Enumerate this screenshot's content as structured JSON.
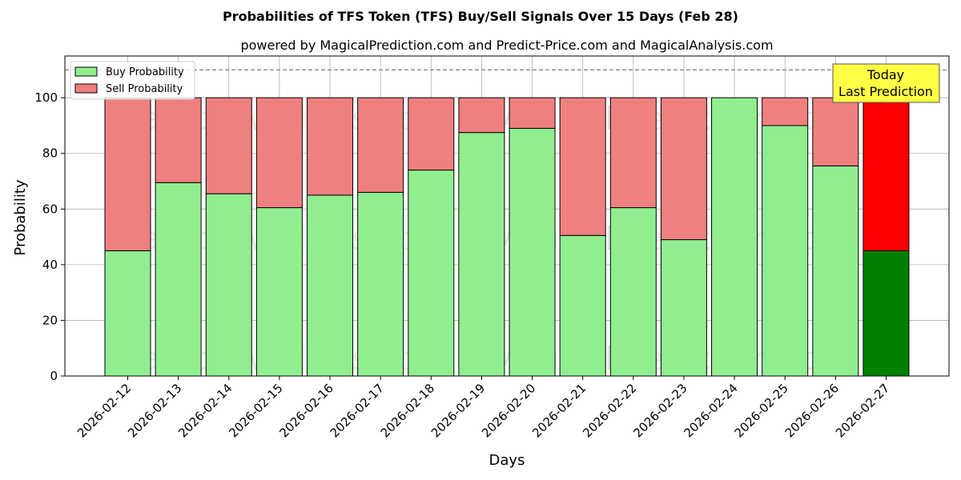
{
  "chart_data": {
    "type": "bar",
    "stacked": true,
    "title": "Probabilities of TFS Token (TFS) Buy/Sell Signals Over 15 Days (Feb 28)",
    "subtitle": "powered by MagicalPrediction.com and Predict-Price.com and MagicalAnalysis.com",
    "xlabel": "Days",
    "ylabel": "Probability",
    "ylim": [
      0,
      115
    ],
    "yticks": [
      0,
      20,
      40,
      60,
      80,
      100
    ],
    "grid": true,
    "legend_position": "top-left",
    "reference_line": 110,
    "categories": [
      "2026-02-12",
      "2026-02-13",
      "2026-02-14",
      "2026-02-15",
      "2026-02-16",
      "2026-02-17",
      "2026-02-18",
      "2026-02-19",
      "2026-02-20",
      "2026-02-21",
      "2026-02-22",
      "2026-02-23",
      "2026-02-24",
      "2026-02-25",
      "2026-02-26",
      "2026-02-27"
    ],
    "series": [
      {
        "name": "Buy Probability",
        "color": "#90ee90",
        "highlight_color": "#008000",
        "values": [
          45,
          69.5,
          65.5,
          60.5,
          65,
          66,
          74,
          87.5,
          89,
          50.5,
          60.5,
          49,
          100,
          90,
          75.5,
          45
        ]
      },
      {
        "name": "Sell Probability",
        "color": "#f08080",
        "highlight_color": "#ff0000",
        "values": [
          55,
          30.5,
          34.5,
          39.5,
          35,
          34,
          26,
          12.5,
          11,
          49.5,
          39.5,
          51,
          0,
          10,
          24.5,
          55
        ]
      }
    ],
    "annotation": {
      "lines": [
        "Today",
        "Last Prediction"
      ],
      "color": "#ffff44"
    },
    "watermarks": [
      "MagicalAnalysis.com",
      "MagicalPrediction.com"
    ]
  }
}
